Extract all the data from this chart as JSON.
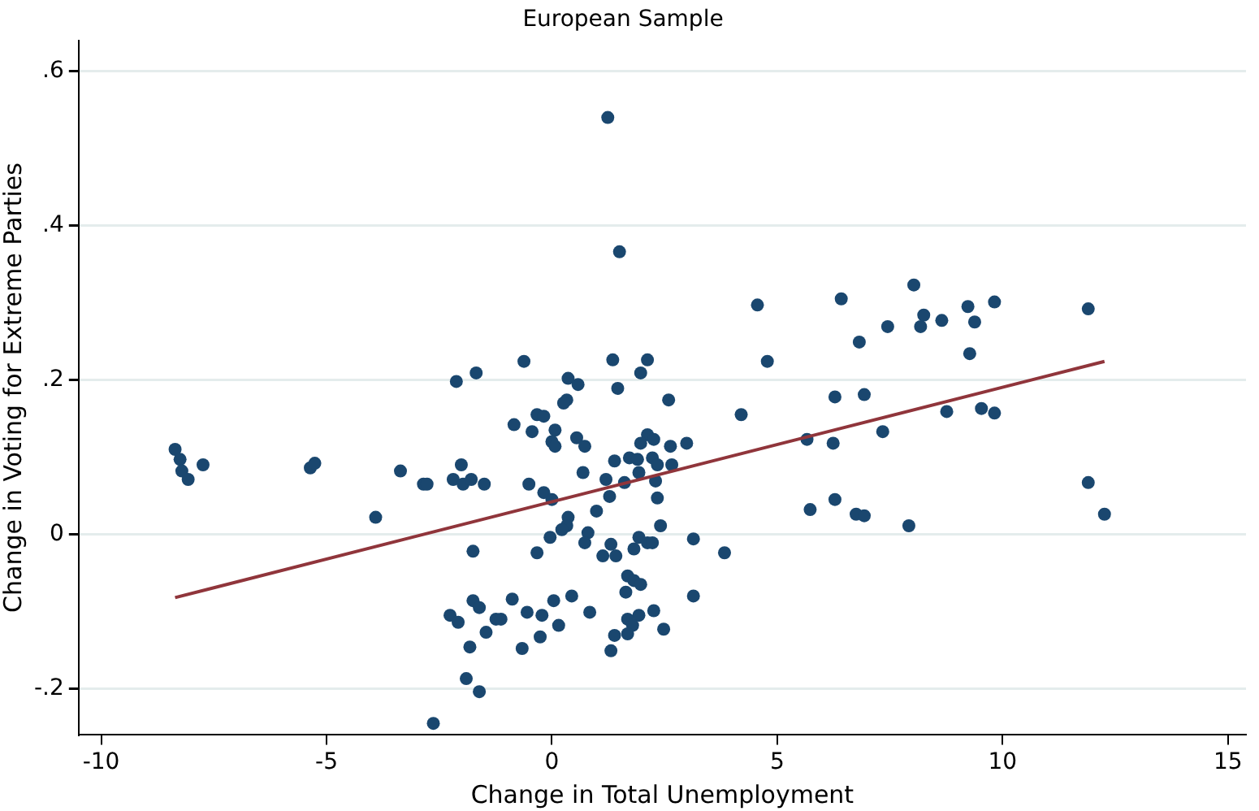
{
  "chart_data": {
    "type": "scatter",
    "title": "European Sample",
    "xlabel": "Change in Total Unemployment",
    "ylabel": "Change in Voting for Extreme Parties",
    "xlim": [
      -10.5,
      15.4
    ],
    "ylim": [
      -0.26,
      0.64
    ],
    "xticks": [
      -10,
      -5,
      0,
      5,
      10,
      15
    ],
    "yticks": [
      {
        "value": -0.2,
        "label": "-.2"
      },
      0,
      {
        "value": 0.2,
        "label": ".2"
      },
      {
        "value": 0.4,
        "label": ".4"
      },
      {
        "value": 0.6,
        "label": ".6"
      }
    ],
    "grid": "y",
    "legend": false,
    "marker": "circle",
    "series": [
      {
        "color": "#1a476f",
        "x": [
          -8.36,
          -8.25,
          -8.21,
          -8.07,
          -7.74,
          -5.36,
          -5.26,
          -3.91,
          -3.36,
          -2.85,
          -2.77,
          -2.12,
          -1.68,
          -2.01,
          -2.19,
          -1.97,
          -1.79,
          -1.5,
          -1.75,
          -2.26,
          -2.08,
          -1.75,
          -1.61,
          -1.46,
          -1.82,
          -1.24,
          -1.9,
          -1.61,
          -2.63,
          1.24,
          1.5,
          -0.62,
          1.35,
          2.12,
          1.97,
          1.46,
          0.36,
          0.58,
          2.59,
          0.33,
          0.26,
          4.2,
          -0.84,
          -0.33,
          -0.18,
          -0.44,
          0.07,
          0,
          0.07,
          0.55,
          0.73,
          2.12,
          1.97,
          2.26,
          2.63,
          2.99,
          1.39,
          1.72,
          1.9,
          2.23,
          2.34,
          2.66,
          0.69,
          1.93,
          1.2,
          1.61,
          2.3,
          -0.51,
          -0.18,
          0,
          1.28,
          2.34,
          0.99,
          0.36,
          0.33,
          0.22,
          2.41,
          0.8,
          -0.04,
          0.73,
          1.31,
          1.93,
          2.12,
          2.23,
          1.82,
          3.14,
          3.83,
          -0.33,
          1.13,
          1.42,
          1.68,
          1.82,
          1.97,
          1.64,
          3.14,
          -0.88,
          0.04,
          0.44,
          -0.55,
          -0.22,
          0.84,
          -1.13,
          0.15,
          1.93,
          2.26,
          1.68,
          1.79,
          2.48,
          -0.26,
          1.39,
          1.68,
          -0.66,
          1.31,
          4.56,
          6.42,
          8.03,
          8.25,
          8.18,
          8.65,
          9.23,
          9.38,
          9.82,
          11.9,
          7.45,
          6.82,
          9.27,
          4.78,
          6.28,
          6.93,
          8.76,
          9.53,
          9.82,
          5.66,
          6.24,
          7.34,
          5.73,
          6.28,
          6.75,
          6.93,
          7.92,
          11.9,
          12.26
        ],
        "values": [
          0.11,
          0.097,
          0.082,
          0.071,
          0.09,
          0.086,
          0.092,
          0.022,
          0.082,
          0.065,
          0.065,
          0.198,
          0.209,
          0.09,
          0.071,
          0.065,
          0.071,
          0.065,
          -0.022,
          -0.105,
          -0.114,
          -0.086,
          -0.095,
          -0.127,
          -0.146,
          -0.11,
          -0.187,
          -0.204,
          -0.245,
          0.54,
          0.366,
          0.224,
          0.226,
          0.226,
          0.209,
          0.189,
          0.202,
          0.194,
          0.174,
          0.174,
          0.17,
          0.155,
          0.142,
          0.155,
          0.153,
          0.133,
          0.135,
          0.12,
          0.114,
          0.125,
          0.114,
          0.129,
          0.118,
          0.123,
          0.114,
          0.118,
          0.095,
          0.099,
          0.097,
          0.099,
          0.09,
          0.09,
          0.08,
          0.08,
          0.071,
          0.067,
          0.069,
          0.065,
          0.054,
          0.045,
          0.049,
          0.047,
          0.03,
          0.022,
          0.011,
          0.006,
          0.011,
          0.002,
          -0.004,
          -0.011,
          -0.013,
          -0.004,
          -0.011,
          -0.011,
          -0.019,
          -0.006,
          -0.024,
          -0.024,
          -0.028,
          -0.028,
          -0.054,
          -0.06,
          -0.065,
          -0.075,
          -0.08,
          -0.084,
          -0.086,
          -0.08,
          -0.101,
          -0.105,
          -0.101,
          -0.11,
          -0.118,
          -0.105,
          -0.099,
          -0.11,
          -0.118,
          -0.123,
          -0.133,
          -0.131,
          -0.129,
          -0.148,
          -0.151,
          0.297,
          0.305,
          0.323,
          0.284,
          0.269,
          0.277,
          0.295,
          0.275,
          0.301,
          0.292,
          0.269,
          0.249,
          0.234,
          0.224,
          0.178,
          0.181,
          0.159,
          0.163,
          0.157,
          0.123,
          0.118,
          0.133,
          0.032,
          0.045,
          0.026,
          0.024,
          0.011,
          0.067,
          0.026
        ]
      },
      {
        "type": "line",
        "color": "#90353b",
        "marker": "none",
        "x": [
          -8.36,
          12.26
        ],
        "values": [
          -0.082,
          0.224
        ]
      }
    ]
  }
}
